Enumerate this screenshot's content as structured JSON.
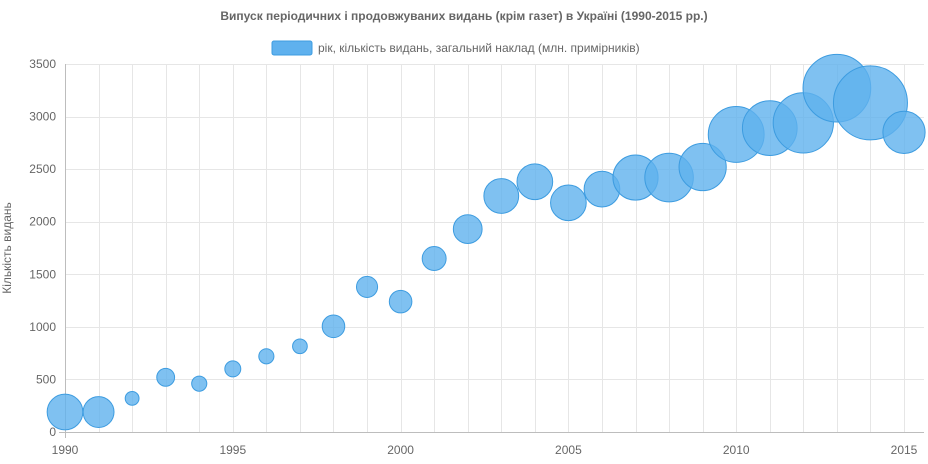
{
  "chart_data": {
    "type": "scatter",
    "title": "Випуск періодичних і продовжуваних видань (крім газет) в Україні (1990-2015 рр.)",
    "legend_position": "top",
    "grid": true,
    "xlabel": "",
    "ylabel": "Кількість видань",
    "xlim": [
      1990,
      2015
    ],
    "ylim": [
      0,
      3500
    ],
    "x_ticks": [
      1990,
      1995,
      2000,
      2005,
      2010,
      2015
    ],
    "y_ticks": [
      0,
      500,
      1000,
      1500,
      2000,
      2500,
      3000,
      3500
    ],
    "colors": {
      "fill": "#5fb1ee",
      "stroke": "#3d9ce0"
    },
    "series": [
      {
        "name": "рік, кількість видань, загальний наклад (млн. примірників)",
        "points": [
          {
            "x": 1990,
            "y": 190,
            "size": 100
          },
          {
            "x": 1991,
            "y": 190,
            "size": 75
          },
          {
            "x": 1992,
            "y": 320,
            "size": 15
          },
          {
            "x": 1993,
            "y": 520,
            "size": 25
          },
          {
            "x": 1994,
            "y": 460,
            "size": 18
          },
          {
            "x": 1995,
            "y": 600,
            "size": 20
          },
          {
            "x": 1996,
            "y": 720,
            "size": 18
          },
          {
            "x": 1997,
            "y": 815,
            "size": 17
          },
          {
            "x": 1998,
            "y": 1005,
            "size": 40
          },
          {
            "x": 1999,
            "y": 1380,
            "size": 35
          },
          {
            "x": 2000,
            "y": 1240,
            "size": 40
          },
          {
            "x": 2001,
            "y": 1650,
            "size": 45
          },
          {
            "x": 2002,
            "y": 1930,
            "size": 65
          },
          {
            "x": 2003,
            "y": 2245,
            "size": 95
          },
          {
            "x": 2004,
            "y": 2380,
            "size": 100
          },
          {
            "x": 2005,
            "y": 2180,
            "size": 100
          },
          {
            "x": 2006,
            "y": 2310,
            "size": 100
          },
          {
            "x": 2007,
            "y": 2420,
            "size": 160
          },
          {
            "x": 2008,
            "y": 2420,
            "size": 185
          },
          {
            "x": 2009,
            "y": 2520,
            "size": 175
          },
          {
            "x": 2010,
            "y": 2830,
            "size": 245
          },
          {
            "x": 2011,
            "y": 2890,
            "size": 235
          },
          {
            "x": 2012,
            "y": 2940,
            "size": 285
          },
          {
            "x": 2013,
            "y": 3270,
            "size": 360
          },
          {
            "x": 2014,
            "y": 3130,
            "size": 430
          },
          {
            "x": 2015,
            "y": 2850,
            "size": 140
          }
        ]
      }
    ]
  }
}
